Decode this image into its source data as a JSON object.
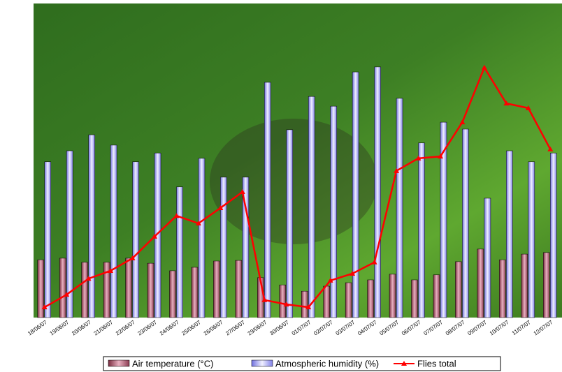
{
  "chart_data": {
    "type": "bar-line",
    "categories": [
      "18/06/07",
      "19/06/07",
      "20/06/07",
      "21/06/07",
      "22/06/07",
      "23/06/07",
      "24/06/07",
      "25/06/07",
      "26/06/07",
      "27/06/07",
      "29/06/07",
      "30/06/07",
      "01/07/07",
      "02/07/07",
      "03/07/07",
      "04/07/07",
      "05/07/07",
      "06/07/07",
      "07/07/07",
      "08/07/07",
      "09/07/07",
      "10/07/07",
      "11/07/07",
      "12/07/07"
    ],
    "series": [
      {
        "name": "Air temperature (°C)",
        "type": "bar",
        "color": "#b05a70",
        "values": [
          18.4,
          18.9,
          17.6,
          17.6,
          18.9,
          17.3,
          14.9,
          16.0,
          18.0,
          18.2,
          12.7,
          10.4,
          8.4,
          10.0,
          11.1,
          12.0,
          13.8,
          12.0,
          13.6,
          17.8,
          21.8,
          18.4,
          20.2,
          20.7
        ]
      },
      {
        "name": "Atmospheric humidity (%)",
        "type": "bar",
        "color": "#9999ff",
        "values": [
          49.6,
          53.1,
          58.2,
          54.9,
          49.6,
          52.4,
          41.6,
          50.7,
          44.7,
          44.7,
          74.9,
          59.8,
          70.4,
          67.3,
          78.2,
          79.8,
          69.8,
          55.6,
          62.2,
          60.0,
          38.0,
          53.1,
          49.6,
          52.4
        ]
      },
      {
        "name": "Flies total",
        "type": "line",
        "color": "#ff0000",
        "values": [
          3.3,
          7.3,
          12.4,
          14.9,
          18.9,
          25.8,
          32.4,
          30.0,
          34.9,
          40.0,
          5.6,
          4.2,
          3.3,
          11.8,
          14.0,
          17.6,
          46.7,
          50.7,
          51.3,
          62.2,
          79.6,
          68.2,
          66.7,
          53.6
        ]
      }
    ],
    "ylim": [
      0,
      100
    ],
    "legend": "bottom"
  }
}
